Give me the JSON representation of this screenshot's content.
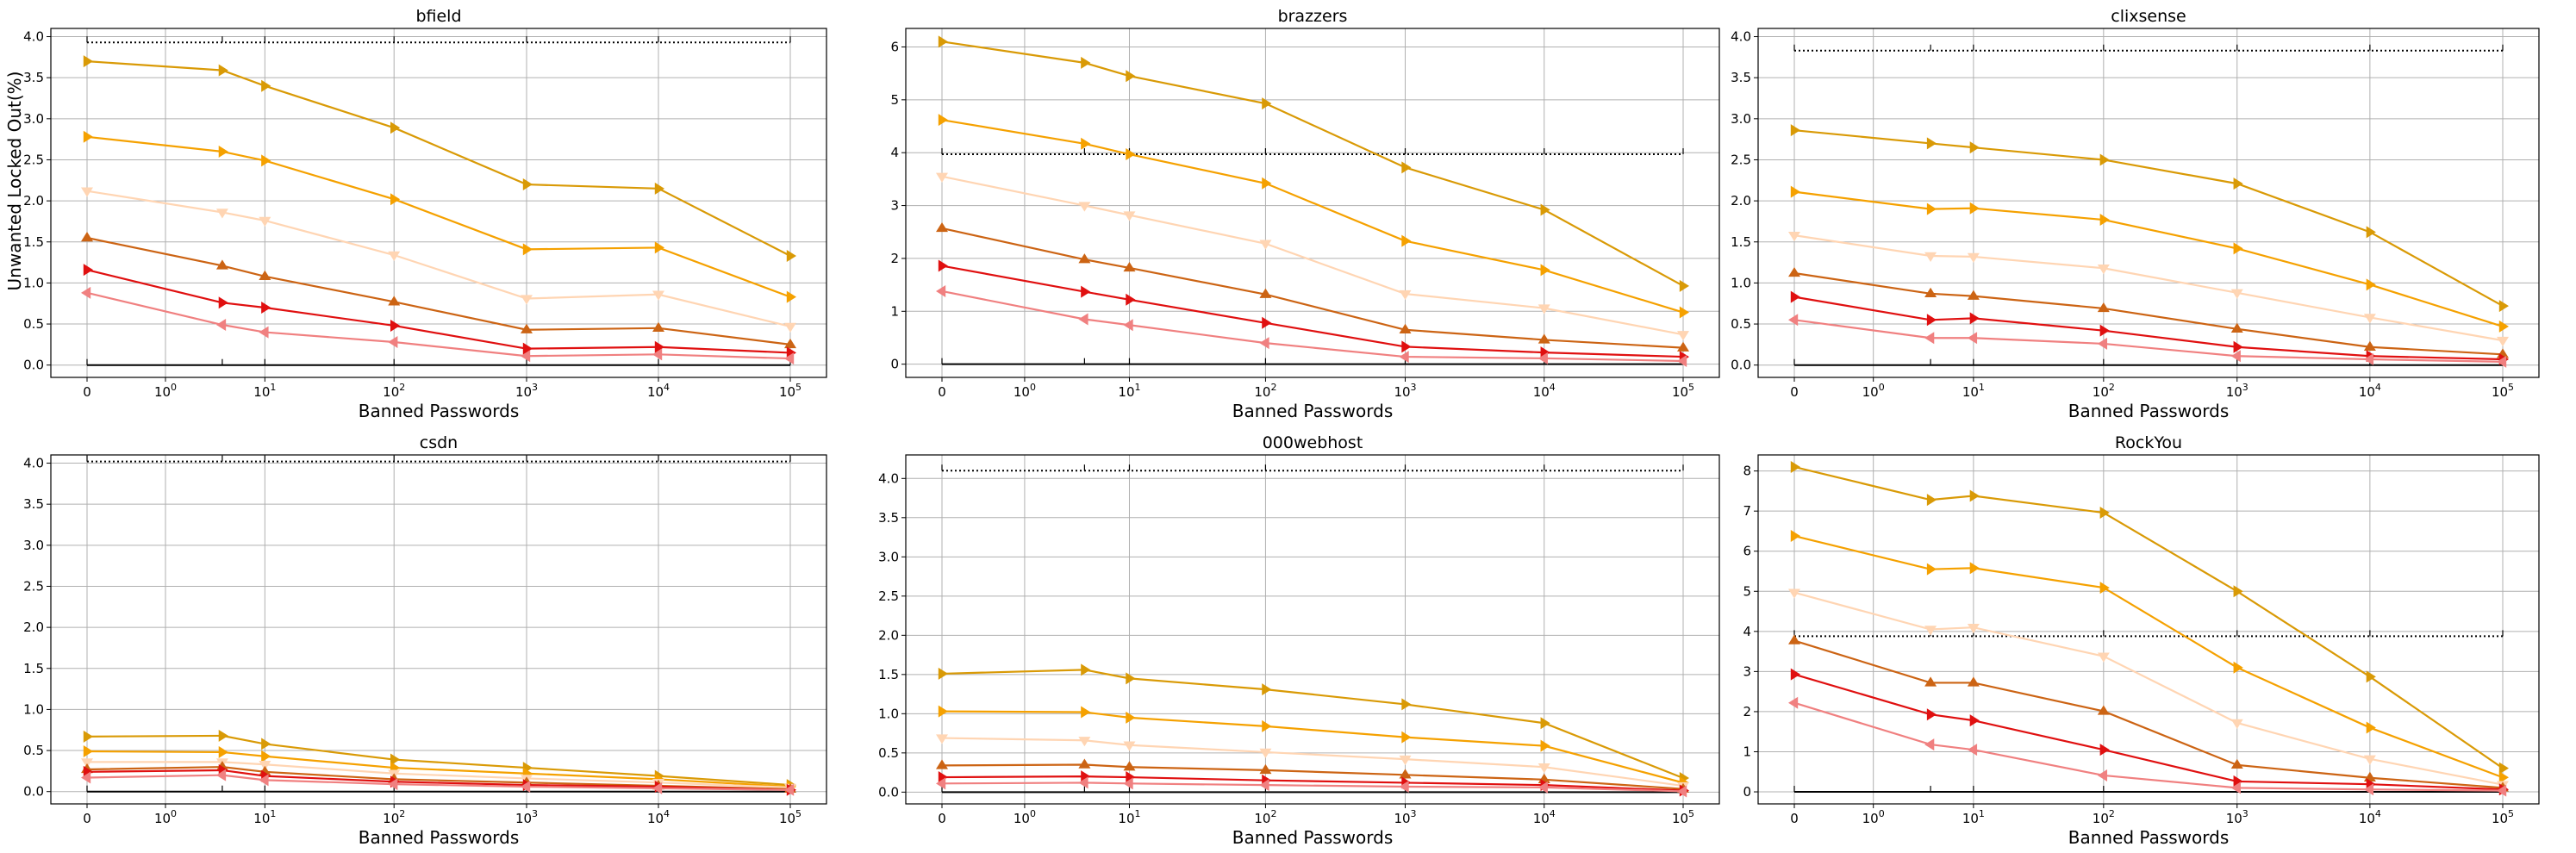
{
  "figure": {
    "ylabel": "Unwanted Locked Out(%)",
    "xlabel": "Banned Passwords"
  },
  "series_colors": [
    "#d99a06",
    "#f5a100",
    "#ffd5b3",
    "#cc6414",
    "#e01010",
    "#f08080"
  ],
  "chart_data": [
    {
      "type": "line",
      "title": "bfield",
      "ylim": [
        -0.15,
        4.1
      ],
      "yticks": [
        "0.0",
        "0.5",
        "1.0",
        "1.5",
        "2.0",
        "2.5",
        "3.0",
        "3.5",
        "4.0"
      ],
      "y_tick_values": [
        0,
        0.5,
        1,
        1.5,
        2,
        2.5,
        3,
        3.5,
        4
      ],
      "x": [
        0,
        5,
        10,
        100,
        1000,
        10000,
        100000
      ],
      "dotted_level": 3.93,
      "series": [
        {
          "values": [
            3.7,
            3.59,
            3.4,
            2.89,
            2.2,
            2.15,
            1.33
          ]
        },
        {
          "values": [
            2.78,
            2.6,
            2.49,
            2.02,
            1.41,
            1.43,
            0.83
          ]
        },
        {
          "values": [
            2.12,
            1.86,
            1.76,
            1.34,
            0.81,
            0.86,
            0.47
          ]
        },
        {
          "values": [
            1.55,
            1.21,
            1.08,
            0.77,
            0.43,
            0.45,
            0.25
          ]
        },
        {
          "values": [
            1.16,
            0.76,
            0.7,
            0.48,
            0.2,
            0.22,
            0.15
          ]
        },
        {
          "values": [
            0.88,
            0.49,
            0.4,
            0.28,
            0.11,
            0.13,
            0.08
          ]
        }
      ]
    },
    {
      "type": "line",
      "title": "brazzers",
      "ylim": [
        -0.25,
        6.35
      ],
      "yticks": [
        "0",
        "1",
        "2",
        "3",
        "4",
        "5",
        "6"
      ],
      "y_tick_values": [
        0,
        1,
        2,
        3,
        4,
        5,
        6
      ],
      "x": [
        0,
        5,
        10,
        100,
        1000,
        10000,
        100000
      ],
      "dotted_level": 3.97,
      "series": [
        {
          "values": [
            6.1,
            5.7,
            5.45,
            4.93,
            3.72,
            2.92,
            1.48
          ]
        },
        {
          "values": [
            4.62,
            4.17,
            3.97,
            3.42,
            2.33,
            1.78,
            0.98
          ]
        },
        {
          "values": [
            3.55,
            3.0,
            2.82,
            2.28,
            1.33,
            1.06,
            0.56
          ]
        },
        {
          "values": [
            2.57,
            1.98,
            1.82,
            1.32,
            0.65,
            0.46,
            0.31
          ]
        },
        {
          "values": [
            1.86,
            1.37,
            1.22,
            0.78,
            0.33,
            0.22,
            0.14
          ]
        },
        {
          "values": [
            1.38,
            0.85,
            0.74,
            0.4,
            0.14,
            0.11,
            0.06
          ]
        }
      ]
    },
    {
      "type": "line",
      "title": "clixsense",
      "ylim": [
        -0.15,
        4.1
      ],
      "yticks": [
        "0.0",
        "0.5",
        "1.0",
        "1.5",
        "2.0",
        "2.5",
        "3.0",
        "3.5",
        "4.0"
      ],
      "y_tick_values": [
        0,
        0.5,
        1,
        1.5,
        2,
        2.5,
        3,
        3.5,
        4
      ],
      "x": [
        0,
        5,
        10,
        100,
        1000,
        10000,
        100000
      ],
      "dotted_level": 3.83,
      "series": [
        {
          "values": [
            2.86,
            2.7,
            2.65,
            2.5,
            2.21,
            1.62,
            0.72
          ]
        },
        {
          "values": [
            2.11,
            1.9,
            1.91,
            1.77,
            1.42,
            0.98,
            0.47
          ]
        },
        {
          "values": [
            1.58,
            1.33,
            1.32,
            1.18,
            0.88,
            0.58,
            0.3
          ]
        },
        {
          "values": [
            1.12,
            0.87,
            0.84,
            0.69,
            0.44,
            0.22,
            0.13
          ]
        },
        {
          "values": [
            0.83,
            0.55,
            0.57,
            0.42,
            0.22,
            0.11,
            0.07
          ]
        },
        {
          "values": [
            0.55,
            0.33,
            0.33,
            0.26,
            0.11,
            0.07,
            0.04
          ]
        }
      ]
    },
    {
      "type": "line",
      "title": "csdn",
      "ylim": [
        -0.15,
        4.1
      ],
      "yticks": [
        "0.0",
        "0.5",
        "1.0",
        "1.5",
        "2.0",
        "2.5",
        "3.0",
        "3.5",
        "4.0"
      ],
      "y_tick_values": [
        0,
        0.5,
        1,
        1.5,
        2,
        2.5,
        3,
        3.5,
        4
      ],
      "x": [
        0,
        5,
        10,
        100,
        1000,
        10000,
        100000
      ],
      "dotted_level": 4.02,
      "series": [
        {
          "values": [
            0.67,
            0.68,
            0.58,
            0.39,
            0.29,
            0.19,
            0.08
          ]
        },
        {
          "values": [
            0.49,
            0.48,
            0.43,
            0.29,
            0.22,
            0.15,
            0.06
          ]
        },
        {
          "values": [
            0.36,
            0.36,
            0.33,
            0.22,
            0.16,
            0.11,
            0.05
          ]
        },
        {
          "values": [
            0.27,
            0.3,
            0.24,
            0.15,
            0.11,
            0.07,
            0.03
          ]
        },
        {
          "values": [
            0.24,
            0.26,
            0.19,
            0.12,
            0.08,
            0.06,
            0.02
          ]
        },
        {
          "values": [
            0.17,
            0.2,
            0.14,
            0.09,
            0.06,
            0.04,
            0.02
          ]
        }
      ]
    },
    {
      "type": "line",
      "title": "000webhost",
      "ylim": [
        -0.15,
        4.3
      ],
      "yticks": [
        "0.0",
        "0.5",
        "1.0",
        "1.5",
        "2.0",
        "2.5",
        "3.0",
        "3.5",
        "4.0"
      ],
      "y_tick_values": [
        0,
        0.5,
        1,
        1.5,
        2,
        2.5,
        3,
        3.5,
        4
      ],
      "x": [
        0,
        5,
        10,
        100,
        1000,
        10000,
        100000
      ],
      "dotted_level": 4.1,
      "series": [
        {
          "values": [
            1.51,
            1.56,
            1.45,
            1.31,
            1.12,
            0.88,
            0.18
          ]
        },
        {
          "values": [
            1.03,
            1.02,
            0.95,
            0.84,
            0.7,
            0.59,
            0.12
          ]
        },
        {
          "values": [
            0.69,
            0.66,
            0.6,
            0.51,
            0.42,
            0.32,
            0.08
          ]
        },
        {
          "values": [
            0.34,
            0.35,
            0.32,
            0.28,
            0.22,
            0.16,
            0.04
          ]
        },
        {
          "values": [
            0.19,
            0.2,
            0.19,
            0.15,
            0.12,
            0.09,
            0.02
          ]
        },
        {
          "values": [
            0.11,
            0.12,
            0.11,
            0.09,
            0.07,
            0.06,
            0.01
          ]
        }
      ]
    },
    {
      "type": "line",
      "title": "RockYou",
      "ylim": [
        -0.3,
        8.4
      ],
      "yticks": [
        "0",
        "1",
        "2",
        "3",
        "4",
        "5",
        "6",
        "7",
        "8"
      ],
      "y_tick_values": [
        0,
        1,
        2,
        3,
        4,
        5,
        6,
        7,
        8
      ],
      "x": [
        0,
        5,
        10,
        100,
        1000,
        10000,
        100000
      ],
      "dotted_level": 3.88,
      "series": [
        {
          "values": [
            8.1,
            7.28,
            7.38,
            6.96,
            5.0,
            2.87,
            0.59
          ]
        },
        {
          "values": [
            6.38,
            5.55,
            5.58,
            5.09,
            3.1,
            1.6,
            0.36
          ]
        },
        {
          "values": [
            4.97,
            4.05,
            4.1,
            3.38,
            1.72,
            0.82,
            0.18
          ]
        },
        {
          "values": [
            3.77,
            2.72,
            2.72,
            2.01,
            0.67,
            0.35,
            0.1
          ]
        },
        {
          "values": [
            2.93,
            1.93,
            1.78,
            1.05,
            0.26,
            0.19,
            0.06
          ]
        },
        {
          "values": [
            2.22,
            1.18,
            1.05,
            0.41,
            0.1,
            0.06,
            0.03
          ]
        }
      ]
    }
  ]
}
